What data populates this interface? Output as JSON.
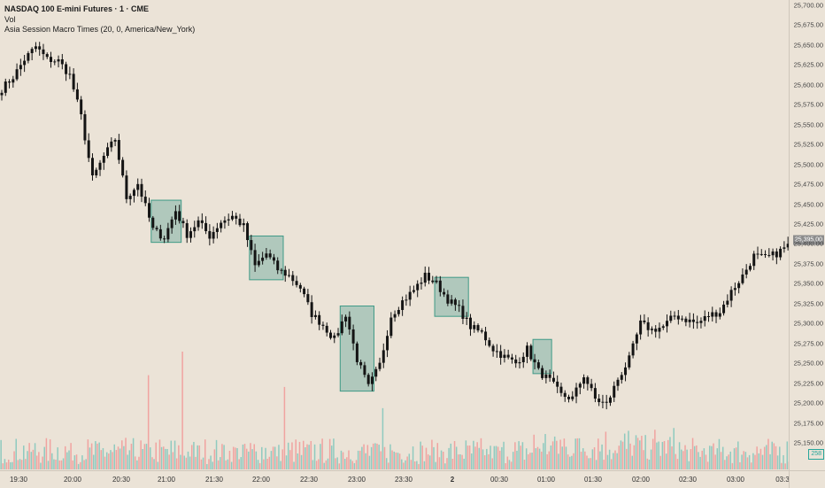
{
  "header": {
    "title": "NASDAQ 100 E-mini Futures · 1 · CME",
    "indicator_vol": "Vol",
    "indicator_macro": "Asia Session Macro Times (20, 0, America/New_York)"
  },
  "price_axis": {
    "labels": [
      "25,700.00",
      "25,675.00",
      "25,650.00",
      "25,625.00",
      "25,600.00",
      "25,575.00",
      "25,550.00",
      "25,525.00",
      "25,500.00",
      "25,475.00",
      "25,450.00",
      "25,425.00",
      "25,400.00",
      "25,375.00",
      "25,350.00",
      "25,325.00",
      "25,300.00",
      "25,275.00",
      "25,250.00",
      "25,225.00",
      "25,200.00",
      "25,175.00",
      "25,150.00"
    ],
    "current_price_label": "25,395.00",
    "volume_badge": "258"
  },
  "time_axis": {
    "labels": [
      "19:30",
      "20:00",
      "20:30",
      "21:00",
      "21:30",
      "22:00",
      "22:30",
      "23:00",
      "23:30",
      "2",
      "00:30",
      "01:00",
      "01:30",
      "02:00",
      "02:30",
      "03:00",
      "03:3"
    ]
  },
  "colors": {
    "background": "#ebe3d7",
    "candle": "#141414",
    "box_fill": "#7fb3a6",
    "box_stroke": "#3f9a86",
    "vol_up": "#8fcabf",
    "vol_down": "#f0a3a0"
  },
  "chart_data": {
    "type": "candlestick",
    "price_range": [
      25150,
      25700
    ],
    "price_path": [
      [
        0,
        25595
      ],
      [
        3,
        25610
      ],
      [
        6,
        25632
      ],
      [
        9,
        25648
      ],
      [
        12,
        25632
      ],
      [
        15,
        25630
      ],
      [
        18,
        25612
      ],
      [
        21,
        25560
      ],
      [
        24,
        25482
      ],
      [
        27,
        25510
      ],
      [
        30,
        25532
      ],
      [
        33,
        25458
      ],
      [
        36,
        25476
      ],
      [
        40,
        25418
      ],
      [
        43,
        25408
      ],
      [
        46,
        25442
      ],
      [
        49,
        25412
      ],
      [
        52,
        25428
      ],
      [
        55,
        25410
      ],
      [
        58,
        25428
      ],
      [
        61,
        25435
      ],
      [
        64,
        25422
      ],
      [
        67,
        25372
      ],
      [
        70,
        25388
      ],
      [
        73,
        25368
      ],
      [
        76,
        25360
      ],
      [
        79,
        25345
      ],
      [
        82,
        25312
      ],
      [
        85,
        25298
      ],
      [
        88,
        25280
      ],
      [
        91,
        25312
      ],
      [
        94,
        25255
      ],
      [
        97,
        25220
      ],
      [
        100,
        25248
      ],
      [
        103,
        25310
      ],
      [
        106,
        25328
      ],
      [
        109,
        25342
      ],
      [
        112,
        25360
      ],
      [
        115,
        25350
      ],
      [
        118,
        25330
      ],
      [
        121,
        25318
      ],
      [
        124,
        25296
      ],
      [
        127,
        25288
      ],
      [
        130,
        25268
      ],
      [
        133,
        25258
      ],
      [
        136,
        25250
      ],
      [
        139,
        25268
      ],
      [
        142,
        25240
      ],
      [
        145,
        25228
      ],
      [
        148,
        25210
      ],
      [
        151,
        25206
      ],
      [
        154,
        25235
      ],
      [
        157,
        25205
      ],
      [
        160,
        25198
      ],
      [
        163,
        25230
      ],
      [
        166,
        25255
      ],
      [
        169,
        25300
      ],
      [
        172,
        25292
      ],
      [
        175,
        25296
      ],
      [
        178,
        25310
      ],
      [
        181,
        25305
      ],
      [
        184,
        25300
      ],
      [
        187,
        25310
      ],
      [
        190,
        25315
      ],
      [
        193,
        25340
      ],
      [
        196,
        25360
      ],
      [
        199,
        25385
      ],
      [
        202,
        25382
      ],
      [
        205,
        25388
      ],
      [
        208,
        25398
      ]
    ],
    "macro_boxes": [
      {
        "start": 40,
        "end": 47,
        "high": 25455,
        "low": 25402
      },
      {
        "start": 66,
        "end": 74,
        "high": 25410,
        "low": 25355
      },
      {
        "start": 90,
        "end": 98,
        "high": 25322,
        "low": 25215
      },
      {
        "start": 115,
        "end": 123,
        "high": 25358,
        "low": 25309
      },
      {
        "start": 141,
        "end": 145,
        "high": 25280,
        "low": 25237
      }
    ],
    "volume_spikes": [
      {
        "index": 39,
        "up": false,
        "level": 0.8
      },
      {
        "index": 48,
        "up": false,
        "level": 1.0
      },
      {
        "index": 75,
        "up": false,
        "level": 0.7
      },
      {
        "index": 101,
        "up": true,
        "level": 0.52
      }
    ],
    "x_ticks": [
      "19:30",
      "20:00",
      "20:30",
      "21:00",
      "21:30",
      "22:00",
      "22:30",
      "23:00",
      "23:30",
      "2",
      "00:30",
      "01:00",
      "01:30",
      "02:00",
      "02:30",
      "03:00",
      "03:3"
    ]
  }
}
